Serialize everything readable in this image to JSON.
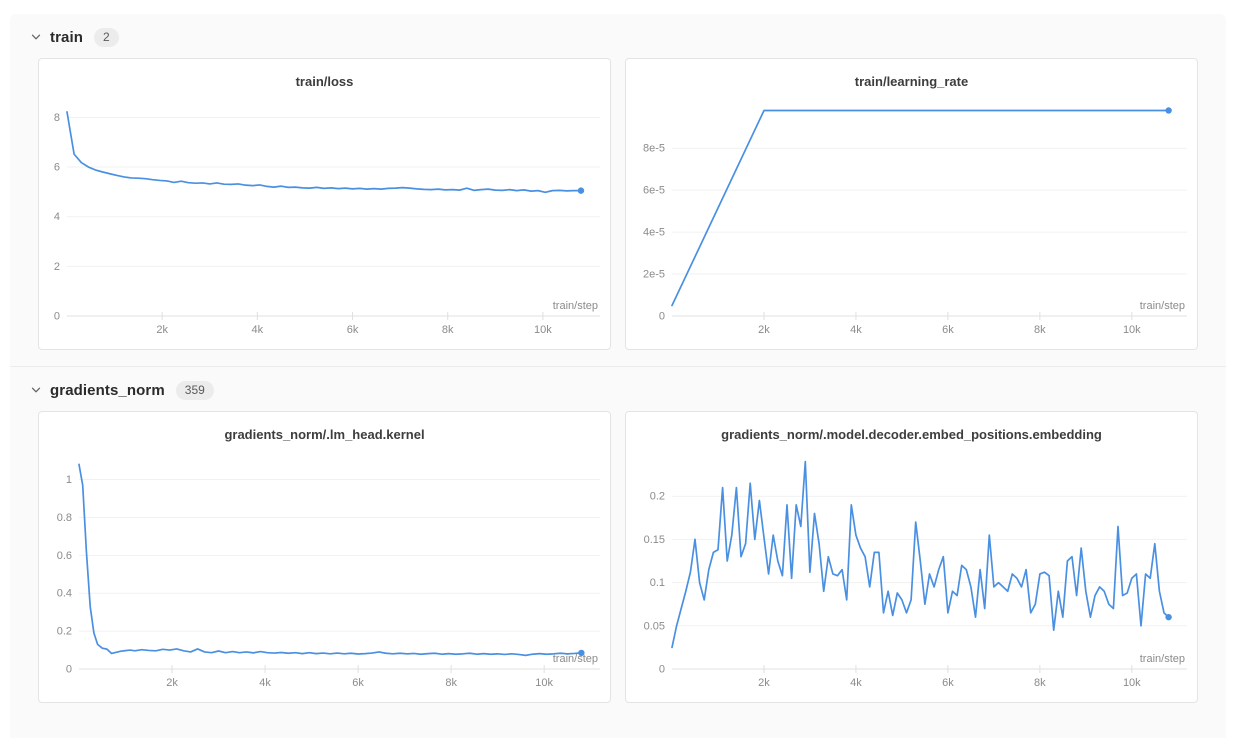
{
  "page": {
    "background": "#ffffff",
    "panel_background": "#fafafa"
  },
  "colors": {
    "line": "#4a90e2",
    "grid": "#f1f1f1",
    "axis": "#e0e0e0",
    "tick_text": "#8b8b8b",
    "title_text": "#3d3d3d"
  },
  "sections": [
    {
      "label": "train",
      "count": "2",
      "collapse_icon": "chevron-down-icon"
    },
    {
      "label": "gradients_norm",
      "count": "359",
      "collapse_icon": "chevron-down-icon"
    }
  ],
  "chart_data": [
    {
      "type": "line",
      "title": "train/loss",
      "xlabel": "train/step",
      "legend": null,
      "grid": "horizontal",
      "color": "#4a90e2",
      "end_dot": true,
      "xlim": [
        0,
        11200
      ],
      "ylim": [
        0,
        8.7
      ],
      "x_ticks": [
        {
          "v": 2000,
          "label": "2k"
        },
        {
          "v": 4000,
          "label": "4k"
        },
        {
          "v": 6000,
          "label": "6k"
        },
        {
          "v": 8000,
          "label": "8k"
        },
        {
          "v": 10000,
          "label": "10k"
        }
      ],
      "y_ticks": [
        {
          "v": 0,
          "label": "0"
        },
        {
          "v": 2,
          "label": "2"
        },
        {
          "v": 4,
          "label": "4"
        },
        {
          "v": 6,
          "label": "6"
        },
        {
          "v": 8,
          "label": "8"
        }
      ],
      "points": [
        [
          0,
          8.22
        ],
        [
          150,
          6.52
        ],
        [
          300,
          6.18
        ],
        [
          450,
          6.0
        ],
        [
          600,
          5.88
        ],
        [
          750,
          5.8
        ],
        [
          900,
          5.73
        ],
        [
          1050,
          5.66
        ],
        [
          1200,
          5.6
        ],
        [
          1350,
          5.56
        ],
        [
          1500,
          5.55
        ],
        [
          1650,
          5.53
        ],
        [
          1800,
          5.49
        ],
        [
          1950,
          5.46
        ],
        [
          2100,
          5.44
        ],
        [
          2250,
          5.38
        ],
        [
          2400,
          5.43
        ],
        [
          2550,
          5.37
        ],
        [
          2700,
          5.35
        ],
        [
          2850,
          5.36
        ],
        [
          3000,
          5.32
        ],
        [
          3150,
          5.36
        ],
        [
          3300,
          5.31
        ],
        [
          3450,
          5.3
        ],
        [
          3600,
          5.32
        ],
        [
          3750,
          5.27
        ],
        [
          3900,
          5.25
        ],
        [
          4050,
          5.28
        ],
        [
          4200,
          5.22
        ],
        [
          4350,
          5.19
        ],
        [
          4500,
          5.23
        ],
        [
          4650,
          5.18
        ],
        [
          4800,
          5.19
        ],
        [
          4950,
          5.16
        ],
        [
          5100,
          5.15
        ],
        [
          5250,
          5.18
        ],
        [
          5400,
          5.14
        ],
        [
          5550,
          5.16
        ],
        [
          5700,
          5.13
        ],
        [
          5850,
          5.15
        ],
        [
          6000,
          5.12
        ],
        [
          6150,
          5.14
        ],
        [
          6300,
          5.11
        ],
        [
          6450,
          5.13
        ],
        [
          6600,
          5.11
        ],
        [
          6750,
          5.14
        ],
        [
          6900,
          5.15
        ],
        [
          7050,
          5.17
        ],
        [
          7200,
          5.15
        ],
        [
          7350,
          5.12
        ],
        [
          7500,
          5.1
        ],
        [
          7650,
          5.09
        ],
        [
          7800,
          5.11
        ],
        [
          7950,
          5.08
        ],
        [
          8100,
          5.09
        ],
        [
          8250,
          5.07
        ],
        [
          8400,
          5.15
        ],
        [
          8550,
          5.06
        ],
        [
          8700,
          5.09
        ],
        [
          8850,
          5.11
        ],
        [
          9000,
          5.07
        ],
        [
          9150,
          5.06
        ],
        [
          9300,
          5.09
        ],
        [
          9450,
          5.05
        ],
        [
          9600,
          5.08
        ],
        [
          9750,
          5.03
        ],
        [
          9900,
          5.05
        ],
        [
          10050,
          4.98
        ],
        [
          10200,
          5.05
        ],
        [
          10350,
          5.06
        ],
        [
          10500,
          5.04
        ],
        [
          10650,
          5.05
        ],
        [
          10800,
          5.05
        ]
      ]
    },
    {
      "type": "line",
      "title": "train/learning_rate",
      "xlabel": "train/step",
      "legend": null,
      "grid": "horizontal",
      "color": "#4a90e2",
      "end_dot": true,
      "xlim": [
        0,
        11200
      ],
      "ylim": [
        0,
        0.000103
      ],
      "x_ticks": [
        {
          "v": 2000,
          "label": "2k"
        },
        {
          "v": 4000,
          "label": "4k"
        },
        {
          "v": 6000,
          "label": "6k"
        },
        {
          "v": 8000,
          "label": "8k"
        },
        {
          "v": 10000,
          "label": "10k"
        }
      ],
      "y_ticks": [
        {
          "v": 0,
          "label": "0"
        },
        {
          "v": 2e-05,
          "label": "2e-5"
        },
        {
          "v": 4e-05,
          "label": "4e-5"
        },
        {
          "v": 6e-05,
          "label": "6e-5"
        },
        {
          "v": 8e-05,
          "label": "8e-5"
        }
      ],
      "points": [
        [
          0,
          5e-06
        ],
        [
          2000,
          9.8e-05
        ],
        [
          10800,
          9.8e-05
        ]
      ]
    },
    {
      "type": "line",
      "title": "gradients_norm/.lm_head.kernel",
      "xlabel": "train/step",
      "legend": null,
      "grid": "horizontal",
      "color": "#4a90e2",
      "end_dot": true,
      "xlim": [
        0,
        11200
      ],
      "ylim": [
        0,
        1.14
      ],
      "x_ticks": [
        {
          "v": 2000,
          "label": "2k"
        },
        {
          "v": 4000,
          "label": "4k"
        },
        {
          "v": 6000,
          "label": "6k"
        },
        {
          "v": 8000,
          "label": "8k"
        },
        {
          "v": 10000,
          "label": "10k"
        }
      ],
      "y_ticks": [
        {
          "v": 0,
          "label": "0"
        },
        {
          "v": 0.2,
          "label": "0.2"
        },
        {
          "v": 0.4,
          "label": "0.4"
        },
        {
          "v": 0.6,
          "label": "0.6"
        },
        {
          "v": 0.8,
          "label": "0.8"
        },
        {
          "v": 1,
          "label": "1"
        }
      ],
      "points": [
        [
          0,
          1.08
        ],
        [
          80,
          0.97
        ],
        [
          160,
          0.62
        ],
        [
          240,
          0.33
        ],
        [
          320,
          0.19
        ],
        [
          400,
          0.13
        ],
        [
          500,
          0.11
        ],
        [
          600,
          0.105
        ],
        [
          700,
          0.082
        ],
        [
          800,
          0.088
        ],
        [
          900,
          0.094
        ],
        [
          1000,
          0.097
        ],
        [
          1100,
          0.1
        ],
        [
          1200,
          0.096
        ],
        [
          1350,
          0.102
        ],
        [
          1500,
          0.098
        ],
        [
          1650,
          0.096
        ],
        [
          1800,
          0.104
        ],
        [
          1950,
          0.1
        ],
        [
          2100,
          0.106
        ],
        [
          2250,
          0.096
        ],
        [
          2400,
          0.09
        ],
        [
          2550,
          0.106
        ],
        [
          2700,
          0.09
        ],
        [
          2850,
          0.086
        ],
        [
          3000,
          0.095
        ],
        [
          3150,
          0.086
        ],
        [
          3300,
          0.092
        ],
        [
          3450,
          0.086
        ],
        [
          3600,
          0.09
        ],
        [
          3750,
          0.085
        ],
        [
          3900,
          0.092
        ],
        [
          4050,
          0.086
        ],
        [
          4200,
          0.084
        ],
        [
          4350,
          0.087
        ],
        [
          4500,
          0.083
        ],
        [
          4650,
          0.086
        ],
        [
          4800,
          0.081
        ],
        [
          4950,
          0.086
        ],
        [
          5100,
          0.081
        ],
        [
          5250,
          0.084
        ],
        [
          5400,
          0.08
        ],
        [
          5550,
          0.084
        ],
        [
          5700,
          0.08
        ],
        [
          5850,
          0.083
        ],
        [
          6000,
          0.079
        ],
        [
          6150,
          0.081
        ],
        [
          6300,
          0.084
        ],
        [
          6450,
          0.09
        ],
        [
          6600,
          0.083
        ],
        [
          6750,
          0.08
        ],
        [
          6900,
          0.083
        ],
        [
          7050,
          0.08
        ],
        [
          7200,
          0.082
        ],
        [
          7350,
          0.078
        ],
        [
          7500,
          0.081
        ],
        [
          7650,
          0.083
        ],
        [
          7800,
          0.078
        ],
        [
          7950,
          0.081
        ],
        [
          8100,
          0.078
        ],
        [
          8250,
          0.08
        ],
        [
          8400,
          0.083
        ],
        [
          8550,
          0.078
        ],
        [
          8700,
          0.081
        ],
        [
          8850,
          0.078
        ],
        [
          9000,
          0.08
        ],
        [
          9150,
          0.077
        ],
        [
          9300,
          0.08
        ],
        [
          9450,
          0.077
        ],
        [
          9600,
          0.072
        ],
        [
          9750,
          0.078
        ],
        [
          9900,
          0.081
        ],
        [
          10050,
          0.078
        ],
        [
          10200,
          0.08
        ],
        [
          10350,
          0.083
        ],
        [
          10500,
          0.08
        ],
        [
          10650,
          0.082
        ],
        [
          10800,
          0.085
        ]
      ]
    },
    {
      "type": "line",
      "title": "gradients_norm/.model.decoder.embed_positions.embedding",
      "xlabel": "train/step",
      "legend": null,
      "grid": "horizontal",
      "color": "#4a90e2",
      "end_dot": true,
      "xlim": [
        0,
        11200
      ],
      "ylim": [
        0,
        0.25
      ],
      "x_ticks": [
        {
          "v": 2000,
          "label": "2k"
        },
        {
          "v": 4000,
          "label": "4k"
        },
        {
          "v": 6000,
          "label": "6k"
        },
        {
          "v": 8000,
          "label": "8k"
        },
        {
          "v": 10000,
          "label": "10k"
        }
      ],
      "y_ticks": [
        {
          "v": 0,
          "label": "0"
        },
        {
          "v": 0.05,
          "label": "0.05"
        },
        {
          "v": 0.1,
          "label": "0.1"
        },
        {
          "v": 0.15,
          "label": "0.15"
        },
        {
          "v": 0.2,
          "label": "0.2"
        }
      ],
      "points": [
        [
          0,
          0.025
        ],
        [
          100,
          0.05
        ],
        [
          200,
          0.07
        ],
        [
          300,
          0.09
        ],
        [
          400,
          0.112
        ],
        [
          500,
          0.15
        ],
        [
          600,
          0.1
        ],
        [
          700,
          0.08
        ],
        [
          800,
          0.115
        ],
        [
          900,
          0.135
        ],
        [
          1000,
          0.138
        ],
        [
          1100,
          0.21
        ],
        [
          1200,
          0.125
        ],
        [
          1300,
          0.155
        ],
        [
          1400,
          0.21
        ],
        [
          1500,
          0.13
        ],
        [
          1600,
          0.145
        ],
        [
          1700,
          0.215
        ],
        [
          1800,
          0.15
        ],
        [
          1900,
          0.195
        ],
        [
          2000,
          0.152
        ],
        [
          2100,
          0.11
        ],
        [
          2200,
          0.155
        ],
        [
          2300,
          0.125
        ],
        [
          2400,
          0.108
        ],
        [
          2500,
          0.19
        ],
        [
          2600,
          0.105
        ],
        [
          2700,
          0.19
        ],
        [
          2800,
          0.165
        ],
        [
          2900,
          0.24
        ],
        [
          3000,
          0.112
        ],
        [
          3100,
          0.18
        ],
        [
          3200,
          0.145
        ],
        [
          3300,
          0.09
        ],
        [
          3400,
          0.13
        ],
        [
          3500,
          0.11
        ],
        [
          3600,
          0.108
        ],
        [
          3700,
          0.115
        ],
        [
          3800,
          0.08
        ],
        [
          3900,
          0.19
        ],
        [
          4000,
          0.155
        ],
        [
          4100,
          0.14
        ],
        [
          4200,
          0.13
        ],
        [
          4300,
          0.095
        ],
        [
          4400,
          0.135
        ],
        [
          4500,
          0.135
        ],
        [
          4600,
          0.065
        ],
        [
          4700,
          0.09
        ],
        [
          4800,
          0.062
        ],
        [
          4900,
          0.088
        ],
        [
          5000,
          0.08
        ],
        [
          5100,
          0.065
        ],
        [
          5200,
          0.08
        ],
        [
          5300,
          0.17
        ],
        [
          5400,
          0.125
        ],
        [
          5500,
          0.075
        ],
        [
          5600,
          0.11
        ],
        [
          5700,
          0.095
        ],
        [
          5800,
          0.115
        ],
        [
          5900,
          0.13
        ],
        [
          6000,
          0.065
        ],
        [
          6100,
          0.09
        ],
        [
          6200,
          0.085
        ],
        [
          6300,
          0.12
        ],
        [
          6400,
          0.115
        ],
        [
          6500,
          0.095
        ],
        [
          6600,
          0.06
        ],
        [
          6700,
          0.115
        ],
        [
          6800,
          0.07
        ],
        [
          6900,
          0.155
        ],
        [
          7000,
          0.095
        ],
        [
          7100,
          0.1
        ],
        [
          7200,
          0.095
        ],
        [
          7300,
          0.09
        ],
        [
          7400,
          0.11
        ],
        [
          7500,
          0.105
        ],
        [
          7600,
          0.095
        ],
        [
          7700,
          0.115
        ],
        [
          7800,
          0.065
        ],
        [
          7900,
          0.075
        ],
        [
          8000,
          0.11
        ],
        [
          8100,
          0.112
        ],
        [
          8200,
          0.108
        ],
        [
          8300,
          0.045
        ],
        [
          8400,
          0.09
        ],
        [
          8500,
          0.06
        ],
        [
          8600,
          0.125
        ],
        [
          8700,
          0.13
        ],
        [
          8800,
          0.085
        ],
        [
          8900,
          0.14
        ],
        [
          9000,
          0.09
        ],
        [
          9100,
          0.06
        ],
        [
          9200,
          0.085
        ],
        [
          9300,
          0.095
        ],
        [
          9400,
          0.09
        ],
        [
          9500,
          0.075
        ],
        [
          9600,
          0.07
        ],
        [
          9700,
          0.165
        ],
        [
          9800,
          0.085
        ],
        [
          9900,
          0.088
        ],
        [
          10000,
          0.105
        ],
        [
          10100,
          0.11
        ],
        [
          10200,
          0.05
        ],
        [
          10300,
          0.11
        ],
        [
          10400,
          0.105
        ],
        [
          10500,
          0.145
        ],
        [
          10600,
          0.09
        ],
        [
          10700,
          0.065
        ],
        [
          10800,
          0.06
        ]
      ]
    }
  ]
}
